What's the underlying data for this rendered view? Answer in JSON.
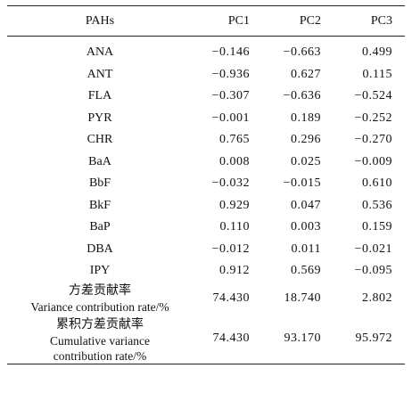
{
  "table": {
    "headers": [
      "PAHs",
      "PC1",
      "PC2",
      "PC3"
    ],
    "rows": [
      {
        "name": "ANA",
        "pc1": "−0.146",
        "pc2": "−0.663",
        "pc3": "0.499"
      },
      {
        "name": "ANT",
        "pc1": "−0.936",
        "pc2": "0.627",
        "pc3": "0.115"
      },
      {
        "name": "FLA",
        "pc1": "−0.307",
        "pc2": "−0.636",
        "pc3": "−0.524"
      },
      {
        "name": "PYR",
        "pc1": "−0.001",
        "pc2": "0.189",
        "pc3": "−0.252"
      },
      {
        "name": "CHR",
        "pc1": "0.765",
        "pc2": "0.296",
        "pc3": "−0.270"
      },
      {
        "name": "BaA",
        "pc1": "0.008",
        "pc2": "0.025",
        "pc3": "−0.009"
      },
      {
        "name": "BbF",
        "pc1": "−0.032",
        "pc2": "−0.015",
        "pc3": "0.610"
      },
      {
        "name": "BkF",
        "pc1": "0.929",
        "pc2": "0.047",
        "pc3": "0.536"
      },
      {
        "name": "BaP",
        "pc1": "0.110",
        "pc2": "0.003",
        "pc3": "0.159"
      },
      {
        "name": "DBA",
        "pc1": "−0.012",
        "pc2": "0.011",
        "pc3": "−0.021"
      },
      {
        "name": "IPY",
        "pc1": "0.912",
        "pc2": "0.569",
        "pc3": "−0.095"
      }
    ],
    "variance": {
      "label_cn": "方差贡献率",
      "label_en": "Variance contribution rate/%",
      "pc1": "74.430",
      "pc2": "18.740",
      "pc3": "2.802"
    },
    "cumulative": {
      "label_cn": "累积方差贡献率",
      "label_en_1": "Cumulative variance",
      "label_en_2": "contribution rate/%",
      "pc1": "74.430",
      "pc2": "93.170",
      "pc3": "95.972"
    }
  }
}
